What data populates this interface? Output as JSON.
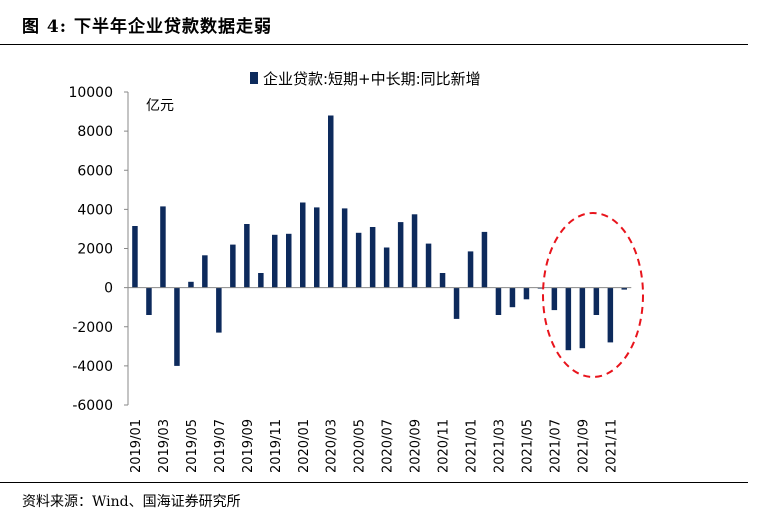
{
  "figure": {
    "title": "图 4:  下半年企业贷款数据走弱",
    "source": "资料来源：Wind、国海证券研究所"
  },
  "colors": {
    "bar": "#0d2a5c",
    "ellipse": "#e8141c"
  },
  "chart_data": {
    "type": "bar",
    "unit_label": "亿元",
    "legend": "企业贷款:短期+中长期:同比新增",
    "legend_position": "top",
    "grid": false,
    "ylim": [
      -6000,
      10000
    ],
    "yticks": [
      10000,
      8000,
      6000,
      4000,
      2000,
      0,
      -2000,
      -4000,
      -6000
    ],
    "categories": [
      "2019/01",
      "2019/02",
      "2019/03",
      "2019/04",
      "2019/05",
      "2019/06",
      "2019/07",
      "2019/08",
      "2019/09",
      "2019/10",
      "2019/11",
      "2019/12",
      "2020/01",
      "2020/02",
      "2020/03",
      "2020/04",
      "2020/05",
      "2020/06",
      "2020/07",
      "2020/08",
      "2020/09",
      "2020/10",
      "2020/11",
      "2020/12",
      "2021/01",
      "2021/02",
      "2021/03",
      "2021/04",
      "2021/05",
      "2021/06",
      "2021/07",
      "2021/08",
      "2021/09",
      "2021/10",
      "2021/11",
      "2021/12"
    ],
    "xtick_labels": [
      "2019/01",
      "",
      "2019/03",
      "",
      "2019/05",
      "",
      "2019/07",
      "",
      "2019/09",
      "",
      "2019/11",
      "",
      "2020/01",
      "",
      "2020/03",
      "",
      "2020/05",
      "",
      "2020/07",
      "",
      "2020/09",
      "",
      "2020/11",
      "",
      "2021/01",
      "",
      "2021/03",
      "",
      "2021/05",
      "",
      "2021/07",
      "",
      "2021/09",
      "",
      "2021/11",
      ""
    ],
    "series": [
      {
        "name": "企业贷款:短期+中长期:同比新增",
        "values": [
          3150,
          -1400,
          4150,
          -4000,
          300,
          1650,
          -2300,
          2200,
          3250,
          750,
          2700,
          2750,
          4350,
          4100,
          8800,
          4050,
          2800,
          3100,
          2050,
          3350,
          3750,
          2250,
          750,
          -1600,
          1850,
          2850,
          -1400,
          -1000,
          -600,
          -50,
          -1150,
          -3200,
          -3100,
          -1400,
          -2800,
          -100
        ]
      }
    ],
    "annotation": "dashed ellipse highlighting 2021/07-2021/12"
  }
}
